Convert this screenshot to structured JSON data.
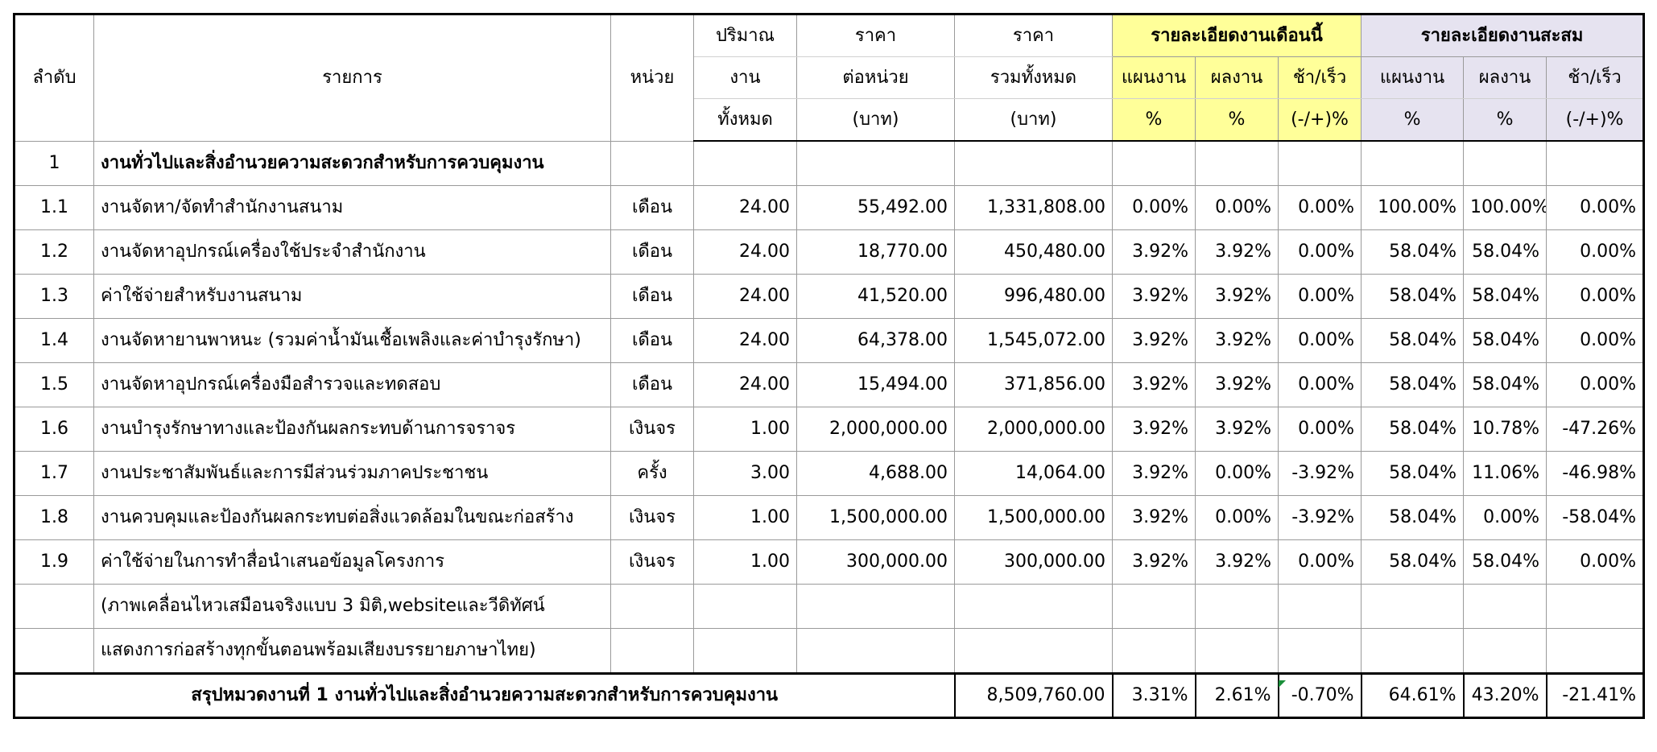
{
  "header": {
    "seq": "ลำดับ",
    "item": "รายการ",
    "unit": "หน่วย",
    "qty": [
      "ปริมาณ",
      "งาน",
      "ทั้งหมด"
    ],
    "unit_price": [
      "ราคา",
      "ต่อหน่วย",
      "(บาท)"
    ],
    "total_price": [
      "ราคา",
      "รวมทั้งหมด",
      "(บาท)"
    ],
    "month_group": "รายละเอียดงานเดือนนี้",
    "cum_group": "รายละเอียดงานสะสม",
    "plan": "แผนงาน",
    "actual": "ผลงาน",
    "diff": "ช้า/เร็ว",
    "pct": "%",
    "diff_pct": "(-/+)%"
  },
  "section": {
    "no": "1",
    "title": "งานทั่วไปและสิ่งอำนวยความสะดวกสำหรับการควบคุมงาน"
  },
  "rows": [
    {
      "no": "1.1",
      "item": "งานจัดหา/จัดทำสำนักงานสนาม",
      "unit": "เดือน",
      "qty": "24.00",
      "price": "55,492.00",
      "total": "1,331,808.00",
      "m_plan": "0.00%",
      "m_act": "0.00%",
      "m_diff": "0.00%",
      "c_plan": "100.00%",
      "c_act": "100.00%",
      "c_diff": "0.00%"
    },
    {
      "no": "1.2",
      "item": "งานจัดหาอุปกรณ์เครื่องใช้ประจำสำนักงาน",
      "unit": "เดือน",
      "qty": "24.00",
      "price": "18,770.00",
      "total": "450,480.00",
      "m_plan": "3.92%",
      "m_act": "3.92%",
      "m_diff": "0.00%",
      "c_plan": "58.04%",
      "c_act": "58.04%",
      "c_diff": "0.00%"
    },
    {
      "no": "1.3",
      "item": "ค่าใช้จ่ายสำหรับงานสนาม",
      "unit": "เดือน",
      "qty": "24.00",
      "price": "41,520.00",
      "total": "996,480.00",
      "m_plan": "3.92%",
      "m_act": "3.92%",
      "m_diff": "0.00%",
      "c_plan": "58.04%",
      "c_act": "58.04%",
      "c_diff": "0.00%"
    },
    {
      "no": "1.4",
      "item": "งานจัดหายานพาหนะ (รวมค่าน้ำมันเชื้อเพลิงและค่าบำรุงรักษา)",
      "unit": "เดือน",
      "qty": "24.00",
      "price": "64,378.00",
      "total": "1,545,072.00",
      "m_plan": "3.92%",
      "m_act": "3.92%",
      "m_diff": "0.00%",
      "c_plan": "58.04%",
      "c_act": "58.04%",
      "c_diff": "0.00%"
    },
    {
      "no": "1.5",
      "item": "งานจัดหาอุปกรณ์เครื่องมือสำรวจและทดสอบ",
      "unit": "เดือน",
      "qty": "24.00",
      "price": "15,494.00",
      "total": "371,856.00",
      "m_plan": "3.92%",
      "m_act": "3.92%",
      "m_diff": "0.00%",
      "c_plan": "58.04%",
      "c_act": "58.04%",
      "c_diff": "0.00%"
    },
    {
      "no": "1.6",
      "item": "งานบำรุงรักษาทางและป้องกันผลกระทบด้านการจราจร",
      "unit": "เงินจร",
      "qty": "1.00",
      "price": "2,000,000.00",
      "total": "2,000,000.00",
      "m_plan": "3.92%",
      "m_act": "3.92%",
      "m_diff": "0.00%",
      "c_plan": "58.04%",
      "c_act": "10.78%",
      "c_diff": "-47.26%"
    },
    {
      "no": "1.7",
      "item": "งานประชาสัมพันธ์และการมีส่วนร่วมภาคประชาชน",
      "unit": "ครั้ง",
      "qty": "3.00",
      "price": "4,688.00",
      "total": "14,064.00",
      "m_plan": "3.92%",
      "m_act": "0.00%",
      "m_diff": "-3.92%",
      "c_plan": "58.04%",
      "c_act": "11.06%",
      "c_diff": "-46.98%"
    },
    {
      "no": "1.8",
      "item": "งานควบคุมและป้องกันผลกระทบต่อสิ่งแวดล้อมในขณะก่อสร้าง",
      "unit": "เงินจร",
      "qty": "1.00",
      "price": "1,500,000.00",
      "total": "1,500,000.00",
      "m_plan": "3.92%",
      "m_act": "0.00%",
      "m_diff": "-3.92%",
      "c_plan": "58.04%",
      "c_act": "0.00%",
      "c_diff": "-58.04%"
    },
    {
      "no": "1.9",
      "item": "ค่าใช้จ่ายในการทำสื่อนำเสนอข้อมูลโครงการ",
      "unit": "เงินจร",
      "qty": "1.00",
      "price": "300,000.00",
      "total": "300,000.00",
      "m_plan": "3.92%",
      "m_act": "3.92%",
      "m_diff": "0.00%",
      "c_plan": "58.04%",
      "c_act": "58.04%",
      "c_diff": "0.00%"
    }
  ],
  "notes": [
    "(ภาพเคลื่อนไหวเสมือนจริงแบบ 3 มิติ,websiteและวีดิทัศน์",
    " แสดงการก่อสร้างทุกขั้นตอนพร้อมเสียงบรรยายภาษาไทย)"
  ],
  "summary": {
    "label": "สรุปหมวดงานที่ 1 งานทั่วไปและสิ่งอำนวยความสะดวกสำหรับการควบคุมงาน",
    "total": "8,509,760.00",
    "m_plan": "3.31%",
    "m_act": "2.61%",
    "m_diff": "-0.70%",
    "c_plan": "64.61%",
    "c_act": "43.20%",
    "c_diff": "-21.41%"
  }
}
